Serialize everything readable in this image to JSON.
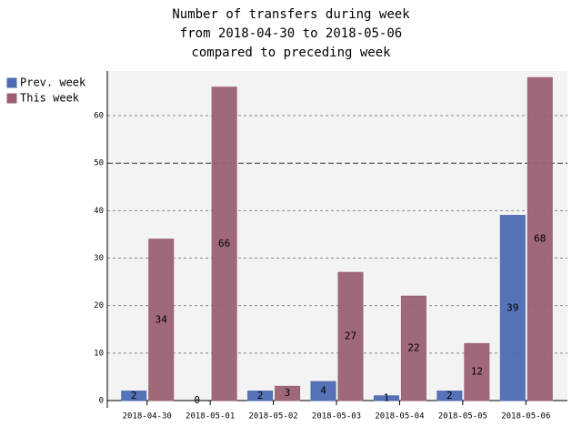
{
  "chart_data": {
    "type": "bar",
    "title": [
      "Number of transfers during week",
      "from 2018-04-30 to 2018-05-06",
      "compared to preceding week"
    ],
    "categories": [
      "2018-04-30",
      "2018-05-01",
      "2018-05-02",
      "2018-05-03",
      "2018-05-04",
      "2018-05-05",
      "2018-05-06"
    ],
    "series": [
      {
        "name": "Prev. week",
        "color": "#4e6bb3",
        "values": [
          2,
          0,
          2,
          4,
          1,
          2,
          39
        ]
      },
      {
        "name": "This week",
        "color": "#9b6172",
        "values": [
          34,
          66,
          3,
          27,
          22,
          12,
          68
        ]
      }
    ],
    "ylim": [
      0,
      69.4
    ],
    "yticks": [
      0,
      10,
      20,
      30,
      40,
      50,
      60
    ],
    "major_yticks": [
      50
    ],
    "grid": true,
    "legend": "top-left"
  }
}
